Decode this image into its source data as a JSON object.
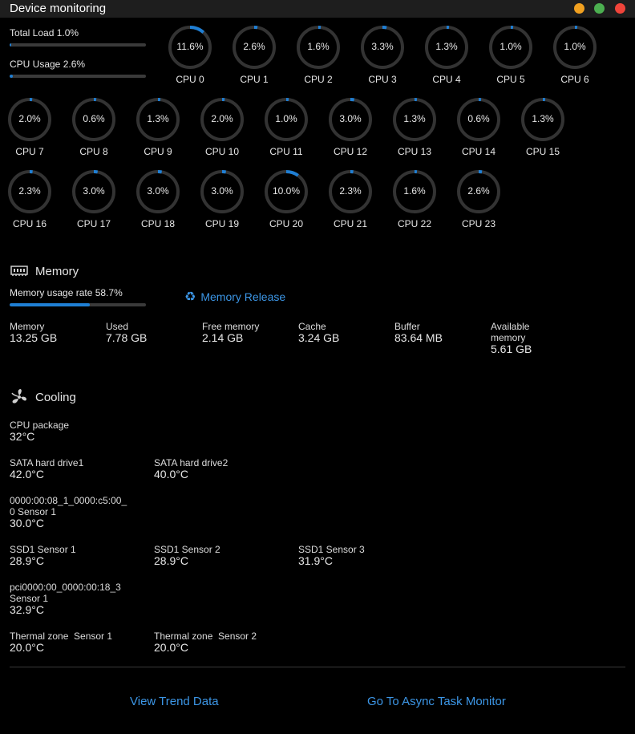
{
  "window": {
    "title": "Device monitoring",
    "controls": [
      {
        "name": "minimize-button",
        "color": "#f0a020"
      },
      {
        "name": "maximize-button",
        "color": "#4caf50"
      },
      {
        "name": "close-button",
        "color": "#f0443a"
      }
    ]
  },
  "load": {
    "total_label": "Total Load 1.0%",
    "total_fraction": 0.01,
    "cpu_label": "CPU Usage 2.6%",
    "cpu_fraction": 0.026
  },
  "cpus": [
    {
      "name": "CPU 0",
      "value": "11.6%",
      "fraction": 0.116
    },
    {
      "name": "CPU 1",
      "value": "2.6%",
      "fraction": 0.026
    },
    {
      "name": "CPU 2",
      "value": "1.6%",
      "fraction": 0.016
    },
    {
      "name": "CPU 3",
      "value": "3.3%",
      "fraction": 0.033
    },
    {
      "name": "CPU 4",
      "value": "1.3%",
      "fraction": 0.013
    },
    {
      "name": "CPU 5",
      "value": "1.0%",
      "fraction": 0.01
    },
    {
      "name": "CPU 6",
      "value": "1.0%",
      "fraction": 0.01
    },
    {
      "name": "CPU 7",
      "value": "2.0%",
      "fraction": 0.02
    },
    {
      "name": "CPU 8",
      "value": "0.6%",
      "fraction": 0.006
    },
    {
      "name": "CPU 9",
      "value": "1.3%",
      "fraction": 0.013
    },
    {
      "name": "CPU 10",
      "value": "2.0%",
      "fraction": 0.02
    },
    {
      "name": "CPU 11",
      "value": "1.0%",
      "fraction": 0.01
    },
    {
      "name": "CPU 12",
      "value": "3.0%",
      "fraction": 0.03
    },
    {
      "name": "CPU 13",
      "value": "1.3%",
      "fraction": 0.013
    },
    {
      "name": "CPU 14",
      "value": "0.6%",
      "fraction": 0.006
    },
    {
      "name": "CPU 15",
      "value": "1.3%",
      "fraction": 0.013
    },
    {
      "name": "CPU 16",
      "value": "2.3%",
      "fraction": 0.023
    },
    {
      "name": "CPU 17",
      "value": "3.0%",
      "fraction": 0.03
    },
    {
      "name": "CPU 18",
      "value": "3.0%",
      "fraction": 0.03
    },
    {
      "name": "CPU 19",
      "value": "3.0%",
      "fraction": 0.03
    },
    {
      "name": "CPU 20",
      "value": "10.0%",
      "fraction": 0.1
    },
    {
      "name": "CPU 21",
      "value": "2.3%",
      "fraction": 0.023
    },
    {
      "name": "CPU 22",
      "value": "1.6%",
      "fraction": 0.016
    },
    {
      "name": "CPU 23",
      "value": "2.6%",
      "fraction": 0.026
    }
  ],
  "memory": {
    "title": "Memory",
    "icon": "memory-chip-icon",
    "usage_label": "Memory usage rate 58.7%",
    "usage_fraction": 0.587,
    "release_label": "Memory Release",
    "release_icon": "recycle-icon",
    "stats": [
      {
        "label": "Memory",
        "value": "13.25 GB"
      },
      {
        "label": "Used",
        "value": "7.78 GB"
      },
      {
        "label": "Free memory",
        "value": "2.14 GB"
      },
      {
        "label": "Cache",
        "value": "3.24 GB"
      },
      {
        "label": "Buffer",
        "value": "83.64 MB"
      },
      {
        "label": "Available memory",
        "value": "5.61 GB"
      }
    ]
  },
  "cooling": {
    "title": "Cooling",
    "icon": "fan-icon",
    "sensors": [
      {
        "label": "CPU package",
        "value": "32°C"
      },
      {
        "label": "SATA hard drive1",
        "value": "42.0°C"
      },
      {
        "label": "SATA hard drive2",
        "value": "40.0°C"
      },
      {
        "label": "0000:00:08_1_0000:c5:00_0 Sensor 1",
        "value": "30.0°C"
      },
      {
        "label": "SSD1 Sensor 1",
        "value": "28.9°C"
      },
      {
        "label": "SSD1 Sensor 2",
        "value": "28.9°C"
      },
      {
        "label": "SSD1 Sensor 3",
        "value": "31.9°C"
      },
      {
        "label": "pci0000:00_0000:00:18_3 Sensor 1",
        "value": "32.9°C"
      },
      {
        "label": "Thermal zone  Sensor 1",
        "value": "20.0°C"
      },
      {
        "label": "Thermal zone  Sensor 2",
        "value": "20.0°C"
      }
    ]
  },
  "footer": {
    "trend_link": "View Trend Data",
    "async_link": "Go To Async Task Monitor"
  },
  "colors": {
    "accent": "#1f7fd4",
    "link": "#3c96e6",
    "gauge_track": "#333333"
  }
}
